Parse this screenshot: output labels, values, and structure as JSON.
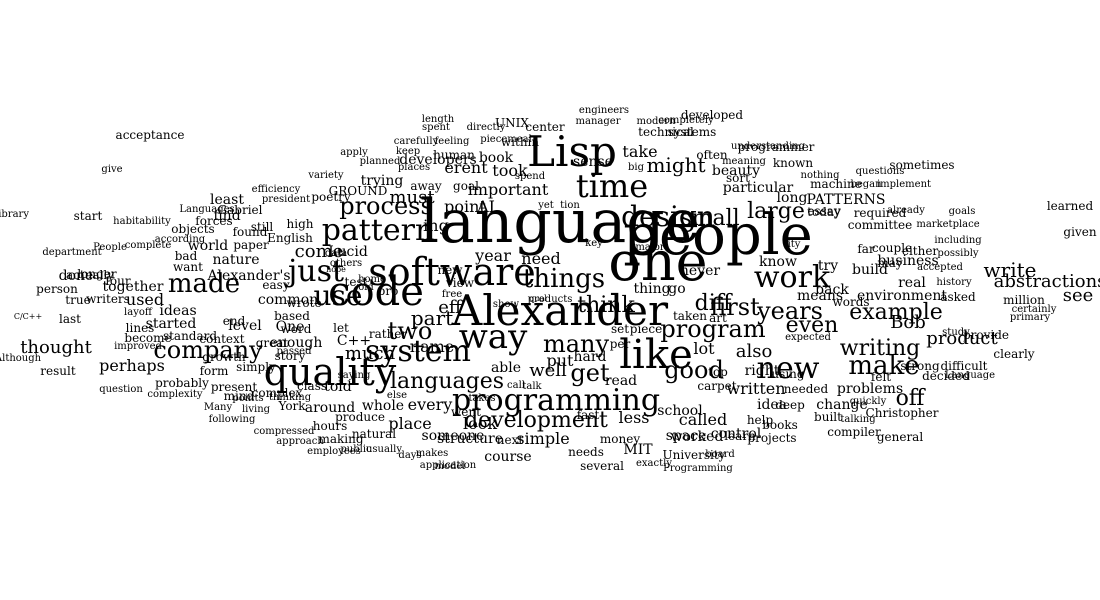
{
  "word_cloud": {
    "words": [
      {
        "t": "language"
      },
      {
        "t": "people"
      },
      {
        "t": "one"
      },
      {
        "t": "Lisp"
      },
      {
        "t": "Alexander"
      },
      {
        "t": "software"
      },
      {
        "t": "like"
      },
      {
        "t": "quality"
      },
      {
        "t": "code"
      },
      {
        "t": "time"
      },
      {
        "t": "way"
      },
      {
        "t": "system"
      },
      {
        "t": "programming"
      },
      {
        "t": "work"
      },
      {
        "t": "design"
      },
      {
        "t": "pattern"
      },
      {
        "t": "just"
      },
      {
        "t": "use"
      },
      {
        "t": "new"
      },
      {
        "t": "things"
      },
      {
        "t": "program"
      },
      {
        "t": "process"
      },
      {
        "t": "small"
      },
      {
        "t": "large"
      },
      {
        "t": "first"
      },
      {
        "t": "years"
      },
      {
        "t": "make"
      },
      {
        "t": "good"
      },
      {
        "t": "get"
      },
      {
        "t": "made"
      },
      {
        "t": "company"
      },
      {
        "t": "many"
      },
      {
        "t": "two"
      },
      {
        "t": "development"
      },
      {
        "t": "languages"
      },
      {
        "t": "writing"
      },
      {
        "t": "example"
      },
      {
        "t": "think"
      },
      {
        "t": "might"
      },
      {
        "t": "even"
      },
      {
        "t": "write"
      },
      {
        "t": "see"
      },
      {
        "t": "abstractions"
      },
      {
        "t": "off"
      },
      {
        "t": "product"
      },
      {
        "t": "Bob"
      },
      {
        "t": "also"
      },
      {
        "t": "diff"
      },
      {
        "t": "important"
      },
      {
        "t": "thought"
      },
      {
        "t": "must"
      },
      {
        "t": "well"
      },
      {
        "t": "much"
      },
      {
        "t": "part"
      },
      {
        "t": "point"
      },
      {
        "t": "AI"
      },
      {
        "t": "ing"
      },
      {
        "t": "erent"
      },
      {
        "t": "took"
      },
      {
        "t": "take"
      },
      {
        "t": "need"
      },
      {
        "t": "year"
      },
      {
        "t": "put"
      },
      {
        "t": "hard"
      },
      {
        "t": "look"
      },
      {
        "t": "place"
      },
      {
        "t": "every"
      },
      {
        "t": "simple"
      },
      {
        "t": "structure"
      },
      {
        "t": "course"
      },
      {
        "t": "less"
      },
      {
        "t": "called"
      },
      {
        "t": "read"
      },
      {
        "t": "able"
      },
      {
        "t": "told"
      },
      {
        "t": "whole"
      },
      {
        "t": "C++"
      },
      {
        "t": "name"
      },
      {
        "t": "come"
      },
      {
        "t": "developers"
      },
      {
        "t": "sense"
      },
      {
        "t": "book"
      },
      {
        "t": "enough"
      },
      {
        "t": "common"
      },
      {
        "t": "One"
      },
      {
        "t": "level"
      },
      {
        "t": "perhaps"
      },
      {
        "t": "used"
      },
      {
        "t": "together"
      },
      {
        "t": "find"
      },
      {
        "t": "least"
      },
      {
        "t": "done"
      },
      {
        "t": "actually"
      },
      {
        "t": "started"
      },
      {
        "t": "ideas"
      },
      {
        "t": "world"
      },
      {
        "t": "nature"
      },
      {
        "t": "Alexander's"
      },
      {
        "t": "Lucid"
      },
      {
        "t": "GROUND"
      },
      {
        "t": "poetry"
      },
      {
        "t": "trying"
      },
      {
        "t": "away"
      },
      {
        "t": "goal"
      },
      {
        "t": "eff"
      },
      {
        "t": "back"
      },
      {
        "t": "try"
      },
      {
        "t": "build"
      },
      {
        "t": "business"
      },
      {
        "t": "real"
      },
      {
        "t": "means"
      },
      {
        "t": "know"
      },
      {
        "t": "environment"
      },
      {
        "t": "asked"
      },
      {
        "t": "long"
      },
      {
        "t": "PATTERNS"
      },
      {
        "t": "beauty"
      },
      {
        "t": "particular"
      },
      {
        "t": "machine"
      },
      {
        "t": "right"
      },
      {
        "t": "written"
      },
      {
        "t": "lot"
      },
      {
        "t": "thing"
      },
      {
        "t": "go"
      },
      {
        "t": "never"
      },
      {
        "t": "idea"
      },
      {
        "t": "help"
      },
      {
        "t": "needed"
      },
      {
        "t": "problems"
      },
      {
        "t": "change"
      },
      {
        "t": "using"
      },
      {
        "t": "control"
      },
      {
        "t": "worked"
      },
      {
        "t": "school"
      },
      {
        "t": "space"
      },
      {
        "t": "MIT"
      },
      {
        "t": "University"
      },
      {
        "t": "money"
      },
      {
        "t": "someone"
      },
      {
        "t": "next"
      },
      {
        "t": "went"
      },
      {
        "t": "fast"
      },
      {
        "t": "new"
      },
      {
        "t": "around"
      },
      {
        "t": "class"
      },
      {
        "t": "story"
      },
      {
        "t": "great"
      },
      {
        "t": "based"
      },
      {
        "t": "wrote"
      },
      {
        "t": "English"
      },
      {
        "t": "high"
      },
      {
        "t": "found"
      },
      {
        "t": "paper"
      },
      {
        "t": "still"
      },
      {
        "t": "Gabriel"
      },
      {
        "t": "forces"
      },
      {
        "t": "objects"
      },
      {
        "t": "context"
      },
      {
        "t": "want"
      },
      {
        "t": "form"
      },
      {
        "t": "York"
      },
      {
        "t": "complex"
      },
      {
        "t": "mind"
      },
      {
        "t": "hours"
      },
      {
        "t": "produce"
      },
      {
        "t": "natural"
      },
      {
        "t": "making"
      },
      {
        "t": "several"
      },
      {
        "t": "books"
      },
      {
        "t": "learn"
      },
      {
        "t": "projects"
      },
      {
        "t": "built"
      },
      {
        "t": "compiler"
      },
      {
        "t": "deep"
      },
      {
        "t": "needs"
      },
      {
        "t": "UNIX"
      },
      {
        "t": "within"
      },
      {
        "t": "human"
      },
      {
        "t": "center"
      },
      {
        "t": "technical"
      },
      {
        "t": "systems"
      },
      {
        "t": "often"
      },
      {
        "t": "developed"
      },
      {
        "t": "programmer"
      },
      {
        "t": "known"
      },
      {
        "t": "sort"
      },
      {
        "t": "essay"
      },
      {
        "t": "today"
      },
      {
        "t": "required"
      },
      {
        "t": "committee"
      },
      {
        "t": "sometimes"
      },
      {
        "t": "may"
      },
      {
        "t": "either"
      },
      {
        "t": "far"
      },
      {
        "t": "couple"
      },
      {
        "t": "words"
      },
      {
        "t": "million"
      },
      {
        "t": "clearly"
      },
      {
        "t": "provide"
      },
      {
        "t": "difficult"
      },
      {
        "t": "strong"
      },
      {
        "t": "felt"
      },
      {
        "t": "decided"
      },
      {
        "t": "Christopher"
      },
      {
        "t": "general"
      },
      {
        "t": "Language"
      },
      {
        "t": "learned"
      },
      {
        "t": "given"
      },
      {
        "t": "acceptance"
      },
      {
        "t": "give"
      },
      {
        "t": "library"
      },
      {
        "t": "start"
      },
      {
        "t": "result"
      },
      {
        "t": "question"
      },
      {
        "t": "last"
      },
      {
        "t": "true"
      },
      {
        "t": "person"
      },
      {
        "t": "writers"
      },
      {
        "t": "four"
      },
      {
        "t": "longer"
      },
      {
        "t": "lines"
      },
      {
        "t": "become"
      },
      {
        "t": "growth"
      },
      {
        "t": "standard"
      },
      {
        "t": "end"
      },
      {
        "t": "probably"
      },
      {
        "t": "present"
      },
      {
        "t": "simply"
      },
      {
        "t": "word"
      },
      {
        "t": "easy"
      },
      {
        "t": "bad"
      },
      {
        "t": "let"
      },
      {
        "t": "test"
      },
      {
        "t": "rather"
      },
      {
        "t": "pro"
      },
      {
        "t": "view"
      },
      {
        "t": "per"
      },
      {
        "t": "set"
      },
      {
        "t": "piece"
      },
      {
        "t": "taken"
      },
      {
        "t": "art"
      },
      {
        "t": "top"
      },
      {
        "t": "carpet"
      },
      {
        "t": "exactly"
      },
      {
        "t": "board"
      },
      {
        "t": "usually"
      },
      {
        "t": "days"
      },
      {
        "t": "makes"
      },
      {
        "t": "model"
      },
      {
        "t": "application"
      },
      {
        "t": "Programming"
      },
      {
        "t": "meaning"
      },
      {
        "t": "understanding"
      },
      {
        "t": "nothing"
      },
      {
        "t": "began"
      },
      {
        "t": "questions"
      },
      {
        "t": "implement"
      },
      {
        "t": "already"
      },
      {
        "t": "goals"
      },
      {
        "t": "marketplace"
      },
      {
        "t": "including"
      },
      {
        "t": "possibly"
      },
      {
        "t": "history"
      },
      {
        "t": "accepted"
      },
      {
        "t": "certainly"
      },
      {
        "t": "primary"
      },
      {
        "t": "study"
      },
      {
        "t": "modern"
      },
      {
        "t": "completely"
      },
      {
        "t": "engineers"
      },
      {
        "t": "manager"
      },
      {
        "t": "directly"
      },
      {
        "t": "piecemeal"
      },
      {
        "t": "spent"
      },
      {
        "t": "feeling"
      },
      {
        "t": "carefully"
      },
      {
        "t": "places"
      },
      {
        "t": "length"
      },
      {
        "t": "keep"
      },
      {
        "t": "apply"
      },
      {
        "t": "planned"
      },
      {
        "t": "variety"
      },
      {
        "t": "efficiency"
      },
      {
        "t": "president"
      },
      {
        "t": "habitability"
      },
      {
        "t": "Languages"
      },
      {
        "t": "complete"
      },
      {
        "t": "according"
      },
      {
        "t": "department"
      },
      {
        "t": "People"
      },
      {
        "t": "layoff"
      },
      {
        "t": "improved"
      },
      {
        "t": "C/C++"
      },
      {
        "t": "Although"
      },
      {
        "t": "complexity"
      },
      {
        "t": "Many"
      },
      {
        "t": "living"
      },
      {
        "t": "points"
      },
      {
        "t": "following"
      },
      {
        "t": "thinking"
      },
      {
        "t": "compressed"
      },
      {
        "t": "approach"
      },
      {
        "t": "employees"
      },
      {
        "t": "public"
      },
      {
        "t": "saying"
      },
      {
        "t": "else"
      },
      {
        "t": "takes"
      },
      {
        "t": "call"
      },
      {
        "t": "talk"
      },
      {
        "t": "old"
      },
      {
        "t": "free"
      },
      {
        "t": "spend"
      },
      {
        "t": "yet"
      },
      {
        "t": "tion"
      },
      {
        "t": "show"
      },
      {
        "t": "key"
      },
      {
        "t": "major"
      },
      {
        "t": "big"
      },
      {
        "t": "home"
      },
      {
        "t": "passed"
      },
      {
        "t": "data"
      },
      {
        "t": "others"
      },
      {
        "t": "hope"
      },
      {
        "t": "qual"
      },
      {
        "t": "ity"
      },
      {
        "t": "expected"
      },
      {
        "t": "talking"
      },
      {
        "t": "quickly"
      },
      {
        "t": "products"
      }
    ]
  }
}
